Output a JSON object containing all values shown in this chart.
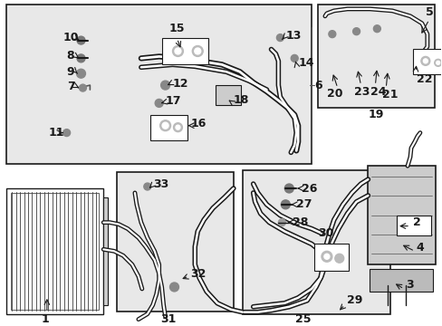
{
  "fig_width": 4.89,
  "fig_height": 3.6,
  "dpi": 100,
  "bg_color": "white",
  "diagram_bg": "#e8e8e8",
  "line_color": "#1a1a1a",
  "box_bg": "#e8e8e8"
}
